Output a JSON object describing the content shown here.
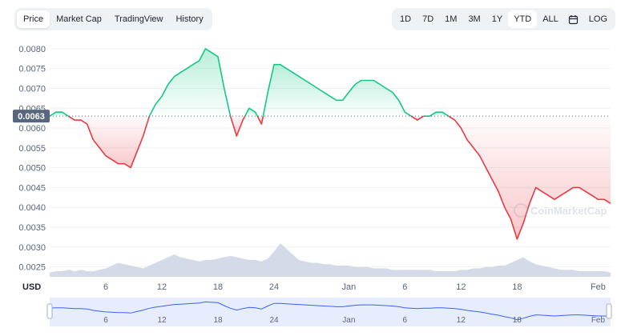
{
  "tabs": [
    "Price",
    "Market Cap",
    "TradingView",
    "History"
  ],
  "ranges": [
    "1D",
    "7D",
    "1M",
    "3M",
    "1Y",
    "YTD",
    "ALL"
  ],
  "log_label": "LOG",
  "currency_label": "USD",
  "watermark": "CoinMarketCap",
  "current_price_label": "0.0063",
  "colors": {
    "up": "#16c784",
    "down": "#ea3943",
    "volume": "#cfd6e4",
    "navigator_line": "#3861fb"
  },
  "chart_data": {
    "type": "line",
    "title": "",
    "xlabel": "",
    "ylabel": "",
    "ylim": [
      0.00225,
      0.0083
    ],
    "yticks": [
      "0.0025",
      "0.0030",
      "0.0035",
      "0.0040",
      "0.0045",
      "0.0050",
      "0.0055",
      "0.0060",
      "0.0065",
      "0.0070",
      "0.0075",
      "0.0080"
    ],
    "xticks": [
      "6",
      "12",
      "18",
      "24",
      "Jan",
      "6",
      "12",
      "18",
      "Feb"
    ],
    "baseline": 0.0063,
    "series": [
      {
        "x": [
          0,
          2,
          4,
          6,
          8,
          10,
          12,
          14,
          16,
          18,
          20,
          22,
          24,
          26,
          28,
          30,
          32,
          34,
          36,
          38,
          40,
          42,
          44,
          46,
          48,
          50,
          52,
          54,
          56,
          58,
          60,
          62,
          64,
          66,
          68,
          70,
          72,
          74,
          76,
          78,
          80,
          82,
          84,
          86,
          88,
          90,
          92,
          94,
          96,
          98,
          100,
          102,
          104,
          106,
          108,
          110,
          112,
          114,
          116,
          118,
          120,
          122,
          124,
          126,
          128,
          130,
          132,
          134,
          136,
          138,
          140,
          142,
          144,
          146,
          148,
          150,
          152,
          154,
          156,
          158,
          160,
          162,
          164,
          166,
          168,
          170,
          172,
          174,
          176,
          178,
          180
        ],
        "y": [
          0.0063,
          0.0064,
          0.0064,
          0.0063,
          0.0062,
          0.0062,
          0.0061,
          0.0057,
          0.0055,
          0.0053,
          0.0052,
          0.0051,
          0.0051,
          0.005,
          0.0054,
          0.0058,
          0.0063,
          0.0066,
          0.0068,
          0.0071,
          0.0073,
          0.0074,
          0.0075,
          0.0076,
          0.0077,
          0.008,
          0.0079,
          0.0078,
          0.007,
          0.0063,
          0.0058,
          0.0062,
          0.0065,
          0.0064,
          0.0061,
          0.0069,
          0.0076,
          0.0076,
          0.0075,
          0.0074,
          0.0073,
          0.0072,
          0.0071,
          0.007,
          0.0069,
          0.0068,
          0.0067,
          0.0067,
          0.0069,
          0.0071,
          0.0072,
          0.0072,
          0.0072,
          0.0071,
          0.007,
          0.0069,
          0.0067,
          0.0064,
          0.0063,
          0.0062,
          0.0063,
          0.0063,
          0.0064,
          0.0064,
          0.0063,
          0.0062,
          0.006,
          0.0057,
          0.0055,
          0.0053,
          0.005,
          0.0047,
          0.0044,
          0.004,
          0.0037,
          0.0032,
          0.0036,
          0.0041,
          0.0045,
          0.0044,
          0.0043,
          0.0042,
          0.0043,
          0.0044,
          0.0045,
          0.0045,
          0.0044,
          0.0043,
          0.0042,
          0.0042,
          0.0041
        ]
      }
    ],
    "volume": [
      3,
      4,
      4,
      5,
      4,
      5,
      4,
      4,
      5,
      6,
      8,
      10,
      9,
      8,
      7,
      6,
      8,
      10,
      12,
      14,
      16,
      14,
      13,
      12,
      11,
      12,
      12,
      13,
      14,
      15,
      14,
      13,
      12,
      12,
      11,
      13,
      18,
      24,
      20,
      16,
      12,
      11,
      10,
      10,
      9,
      9,
      8,
      8,
      8,
      7,
      7,
      7,
      6,
      6,
      6,
      5,
      5,
      5,
      5,
      5,
      5,
      5,
      4,
      4,
      4,
      4,
      5,
      5,
      6,
      6,
      7,
      7,
      8,
      8,
      10,
      12,
      14,
      11,
      9,
      8,
      7,
      6,
      5,
      5,
      5,
      4,
      4,
      4,
      4,
      4,
      3
    ]
  }
}
